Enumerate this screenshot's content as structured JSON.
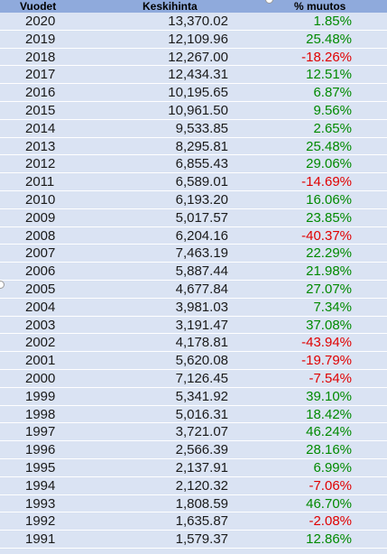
{
  "header": {
    "year_label": "Vuodet",
    "avg_label": "Keskihinta",
    "pct_label": "% muutos"
  },
  "rows": [
    {
      "year": "2020",
      "avg": "13,370.02",
      "pct": "1.85%",
      "sign": "pos"
    },
    {
      "year": "2019",
      "avg": "12,109.96",
      "pct": "25.48%",
      "sign": "pos"
    },
    {
      "year": "2018",
      "avg": "12,267.00",
      "pct": "-18.26%",
      "sign": "neg"
    },
    {
      "year": "2017",
      "avg": "12,434.31",
      "pct": "12.51%",
      "sign": "pos"
    },
    {
      "year": "2016",
      "avg": "10,195.65",
      "pct": "6.87%",
      "sign": "pos"
    },
    {
      "year": "2015",
      "avg": "10,961.50",
      "pct": "9.56%",
      "sign": "pos"
    },
    {
      "year": "2014",
      "avg": "9,533.85",
      "pct": "2.65%",
      "sign": "pos"
    },
    {
      "year": "2013",
      "avg": "8,295.81",
      "pct": "25.48%",
      "sign": "pos"
    },
    {
      "year": "2012",
      "avg": "6,855.43",
      "pct": "29.06%",
      "sign": "pos"
    },
    {
      "year": "2011",
      "avg": "6,589.01",
      "pct": "-14.69%",
      "sign": "neg"
    },
    {
      "year": "2010",
      "avg": "6,193.20",
      "pct": "16.06%",
      "sign": "pos"
    },
    {
      "year": "2009",
      "avg": "5,017.57",
      "pct": "23.85%",
      "sign": "pos"
    },
    {
      "year": "2008",
      "avg": "6,204.16",
      "pct": "-40.37%",
      "sign": "neg"
    },
    {
      "year": "2007",
      "avg": "7,463.19",
      "pct": "22.29%",
      "sign": "pos"
    },
    {
      "year": "2006",
      "avg": "5,887.44",
      "pct": "21.98%",
      "sign": "pos"
    },
    {
      "year": "2005",
      "avg": "4,677.84",
      "pct": "27.07%",
      "sign": "pos"
    },
    {
      "year": "2004",
      "avg": "3,981.03",
      "pct": "7.34%",
      "sign": "pos"
    },
    {
      "year": "2003",
      "avg": "3,191.47",
      "pct": "37.08%",
      "sign": "pos"
    },
    {
      "year": "2002",
      "avg": "4,178.81",
      "pct": "-43.94%",
      "sign": "neg"
    },
    {
      "year": "2001",
      "avg": "5,620.08",
      "pct": "-19.79%",
      "sign": "neg"
    },
    {
      "year": "2000",
      "avg": "7,126.45",
      "pct": "-7.54%",
      "sign": "neg"
    },
    {
      "year": "1999",
      "avg": "5,341.92",
      "pct": "39.10%",
      "sign": "pos"
    },
    {
      "year": "1998",
      "avg": "5,016.31",
      "pct": "18.42%",
      "sign": "pos"
    },
    {
      "year": "1997",
      "avg": "3,721.07",
      "pct": "46.24%",
      "sign": "pos"
    },
    {
      "year": "1996",
      "avg": "2,566.39",
      "pct": "28.16%",
      "sign": "pos"
    },
    {
      "year": "1995",
      "avg": "2,137.91",
      "pct": "6.99%",
      "sign": "pos"
    },
    {
      "year": "1994",
      "avg": "2,120.32",
      "pct": "-7.06%",
      "sign": "neg"
    },
    {
      "year": "1993",
      "avg": "1,808.59",
      "pct": "46.70%",
      "sign": "pos"
    },
    {
      "year": "1992",
      "avg": "1,635.87",
      "pct": "-2.08%",
      "sign": "neg"
    },
    {
      "year": "1991",
      "avg": "1,579.37",
      "pct": "12.86%",
      "sign": "pos"
    }
  ],
  "colors": {
    "header_bg": "#8faadc",
    "body_bg": "#dae3f3",
    "positive": "#008a00",
    "negative": "#e00000"
  }
}
